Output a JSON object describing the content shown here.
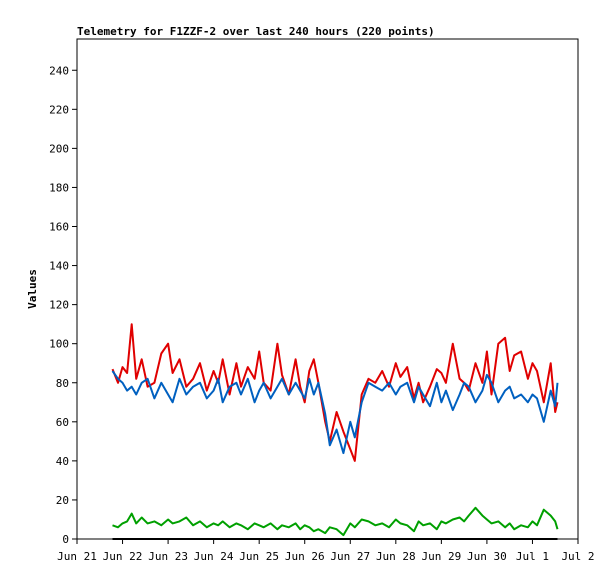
{
  "chart_data": {
    "type": "line",
    "title": "Telemetry for F1ZZF-2 over last 240 hours (220 points)",
    "ylabel": "Values",
    "xlabel": "",
    "ylim": [
      0,
      256
    ],
    "yticks": [
      0,
      20,
      40,
      60,
      80,
      100,
      120,
      140,
      160,
      180,
      200,
      220,
      240
    ],
    "xlim": [
      0,
      11
    ],
    "xticks": [
      {
        "x": 0,
        "label": "Jun 21"
      },
      {
        "x": 1,
        "label": "Jun 22"
      },
      {
        "x": 2,
        "label": "Jun 23"
      },
      {
        "x": 3,
        "label": "Jun 24"
      },
      {
        "x": 4,
        "label": "Jun 25"
      },
      {
        "x": 5,
        "label": "Jun 26"
      },
      {
        "x": 6,
        "label": "Jun 27"
      },
      {
        "x": 7,
        "label": "Jun 28"
      },
      {
        "x": 8,
        "label": "Jun 29"
      },
      {
        "x": 9,
        "label": "Jun 30"
      },
      {
        "x": 10,
        "label": "Jul 1"
      },
      {
        "x": 11,
        "label": "Jul 2"
      }
    ],
    "grid": false,
    "series": [
      {
        "color": "#e00000",
        "x": [
          0.78,
          0.9,
          1.0,
          1.1,
          1.2,
          1.3,
          1.42,
          1.55,
          1.7,
          1.85,
          2.0,
          2.1,
          2.25,
          2.4,
          2.55,
          2.7,
          2.85,
          3.0,
          3.1,
          3.2,
          3.35,
          3.5,
          3.6,
          3.75,
          3.9,
          4.0,
          4.1,
          4.25,
          4.4,
          4.5,
          4.65,
          4.8,
          4.9,
          5.0,
          5.1,
          5.2,
          5.3,
          5.45,
          5.55,
          5.7,
          5.85,
          6.0,
          6.1,
          6.25,
          6.4,
          6.55,
          6.7,
          6.85,
          7.0,
          7.1,
          7.25,
          7.4,
          7.5,
          7.6,
          7.75,
          7.9,
          8.0,
          8.1,
          8.25,
          8.4,
          8.5,
          8.6,
          8.75,
          8.9,
          9.0,
          9.1,
          9.25,
          9.4,
          9.5,
          9.6,
          9.75,
          9.9,
          10.0,
          10.1,
          10.25,
          10.4,
          10.5,
          10.55
        ],
        "values": [
          87,
          80,
          88,
          85,
          110,
          82,
          92,
          78,
          80,
          95,
          100,
          85,
          92,
          78,
          82,
          90,
          76,
          86,
          80,
          92,
          74,
          90,
          78,
          88,
          82,
          96,
          80,
          76,
          100,
          84,
          74,
          92,
          78,
          70,
          86,
          92,
          80,
          60,
          50,
          65,
          55,
          46,
          40,
          74,
          82,
          80,
          86,
          78,
          90,
          83,
          88,
          72,
          80,
          70,
          78,
          87,
          85,
          80,
          100,
          82,
          80,
          76,
          90,
          80,
          96,
          74,
          100,
          103,
          86,
          94,
          96,
          82,
          90,
          86,
          70,
          90,
          65,
          70
        ]
      },
      {
        "color": "#0060c0",
        "x": [
          0.78,
          0.9,
          1.0,
          1.1,
          1.2,
          1.3,
          1.42,
          1.55,
          1.7,
          1.85,
          2.0,
          2.1,
          2.25,
          2.4,
          2.55,
          2.7,
          2.85,
          3.0,
          3.1,
          3.2,
          3.35,
          3.5,
          3.6,
          3.75,
          3.9,
          4.0,
          4.1,
          4.25,
          4.4,
          4.5,
          4.65,
          4.8,
          4.9,
          5.0,
          5.1,
          5.2,
          5.3,
          5.45,
          5.55,
          5.7,
          5.85,
          6.0,
          6.1,
          6.25,
          6.4,
          6.55,
          6.7,
          6.85,
          7.0,
          7.1,
          7.25,
          7.4,
          7.5,
          7.6,
          7.75,
          7.9,
          8.0,
          8.1,
          8.25,
          8.4,
          8.5,
          8.6,
          8.75,
          8.9,
          9.0,
          9.1,
          9.25,
          9.4,
          9.5,
          9.6,
          9.75,
          9.9,
          10.0,
          10.1,
          10.25,
          10.4,
          10.5,
          10.55
        ],
        "values": [
          86,
          82,
          80,
          76,
          78,
          74,
          80,
          82,
          72,
          80,
          74,
          70,
          82,
          74,
          78,
          80,
          72,
          76,
          82,
          70,
          78,
          80,
          74,
          82,
          70,
          76,
          80,
          72,
          78,
          82,
          74,
          80,
          76,
          72,
          82,
          74,
          80,
          64,
          48,
          56,
          44,
          60,
          52,
          70,
          80,
          78,
          76,
          80,
          74,
          78,
          80,
          70,
          78,
          74,
          68,
          80,
          70,
          76,
          66,
          74,
          80,
          78,
          70,
          76,
          84,
          80,
          70,
          76,
          78,
          72,
          74,
          70,
          74,
          72,
          60,
          76,
          68,
          80
        ]
      },
      {
        "color": "#00a000",
        "x": [
          0.78,
          0.9,
          1.0,
          1.1,
          1.2,
          1.3,
          1.42,
          1.55,
          1.7,
          1.85,
          2.0,
          2.1,
          2.25,
          2.4,
          2.55,
          2.7,
          2.85,
          3.0,
          3.1,
          3.2,
          3.35,
          3.5,
          3.6,
          3.75,
          3.9,
          4.0,
          4.1,
          4.25,
          4.4,
          4.5,
          4.65,
          4.8,
          4.9,
          5.0,
          5.1,
          5.2,
          5.3,
          5.45,
          5.55,
          5.7,
          5.85,
          6.0,
          6.1,
          6.25,
          6.4,
          6.55,
          6.7,
          6.85,
          7.0,
          7.1,
          7.25,
          7.4,
          7.5,
          7.6,
          7.75,
          7.9,
          8.0,
          8.1,
          8.25,
          8.4,
          8.5,
          8.6,
          8.75,
          8.9,
          9.0,
          9.1,
          9.25,
          9.4,
          9.5,
          9.6,
          9.75,
          9.9,
          10.0,
          10.1,
          10.25,
          10.4,
          10.5,
          10.55
        ],
        "values": [
          7,
          6,
          8,
          9,
          13,
          8,
          11,
          8,
          9,
          7,
          10,
          8,
          9,
          11,
          7,
          9,
          6,
          8,
          7,
          9,
          6,
          8,
          7,
          5,
          8,
          7,
          6,
          8,
          5,
          7,
          6,
          8,
          5,
          7,
          6,
          4,
          5,
          3,
          6,
          5,
          2,
          8,
          6,
          10,
          9,
          7,
          8,
          6,
          10,
          8,
          7,
          4,
          9,
          7,
          8,
          5,
          9,
          8,
          10,
          11,
          9,
          12,
          16,
          12,
          10,
          8,
          9,
          6,
          8,
          5,
          7,
          6,
          9,
          7,
          15,
          12,
          9,
          5
        ]
      },
      {
        "color": "#000000",
        "x": [
          0.78,
          10.55
        ],
        "values": [
          0,
          0
        ]
      }
    ]
  }
}
